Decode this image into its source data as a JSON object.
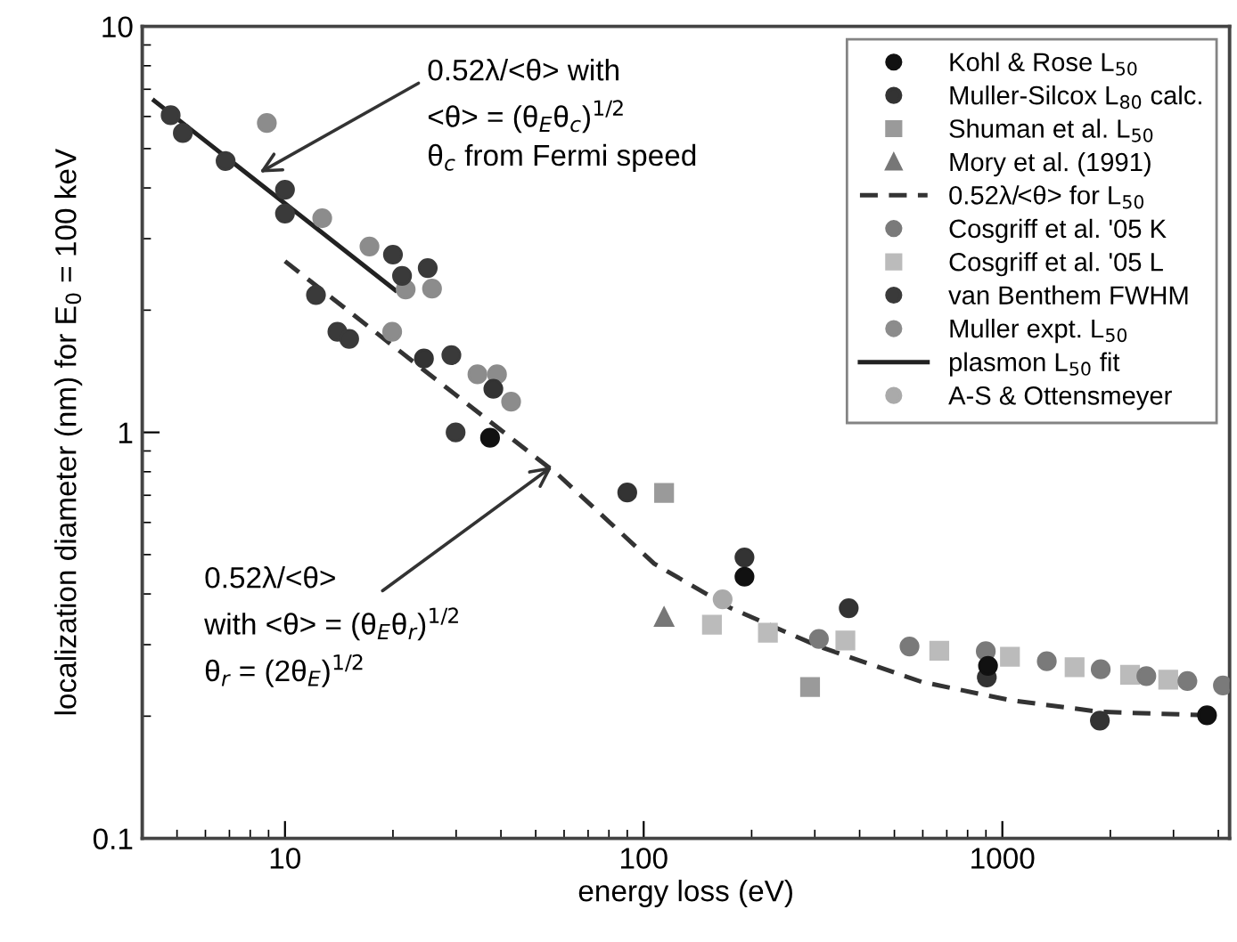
{
  "chart_data": {
    "type": "scatter",
    "xlabel": "energy loss (eV)",
    "ylabel": "localization diameter (nm) for E$_{0}$ = 100 keV",
    "log": "xy",
    "xlim": [
      4,
      4300
    ],
    "ylim": [
      0.1,
      10
    ],
    "xticks": [
      10,
      100,
      1000
    ],
    "yticks": [
      0.1,
      1,
      10
    ],
    "grid": false,
    "legend": "top right",
    "series": [
      {
        "name": "Kohl & Rose L$_{50}$",
        "marker": "circle",
        "color": "#111111",
        "x": [
          37.3,
          191,
          912,
          3720
        ],
        "values": [
          0.97,
          0.441,
          0.266,
          0.201
        ]
      },
      {
        "name": "Muller-Silcox L$_{80}$ calc.",
        "marker": "circle",
        "color": "#333333",
        "x": [
          24.4,
          38.1,
          90,
          191,
          373,
          905,
          1870
        ],
        "values": [
          1.52,
          1.28,
          0.711,
          0.492,
          0.369,
          0.249,
          0.195
        ]
      },
      {
        "name": "Shuman et al. L$_{50}$",
        "marker": "square",
        "color": "#9a9a9a",
        "x": [
          114,
          291
        ],
        "values": [
          0.709,
          0.236
        ]
      },
      {
        "name": "Mory et al. (1991)",
        "marker": "triangle",
        "color": "#777777",
        "x": [
          114
        ],
        "values": [
          0.351
        ]
      },
      {
        "name": "0.52λ/<θ> for L$_{50}$",
        "type": "line",
        "line_style": "dashed",
        "color": "#333333",
        "x": [
          10,
          25,
          57.7,
          107,
          175,
          311,
          595,
          1050,
          1870,
          3720
        ],
        "values": [
          2.64,
          1.4,
          0.787,
          0.475,
          0.369,
          0.296,
          0.243,
          0.219,
          0.205,
          0.201
        ]
      },
      {
        "name": "Cosgriff et al. '05 K",
        "marker": "circle",
        "color": "#7a7a7a",
        "x": [
          308,
          551,
          899,
          1330,
          1880,
          2520,
          3280,
          4120
        ],
        "values": [
          0.31,
          0.297,
          0.289,
          0.273,
          0.261,
          0.251,
          0.244,
          0.238
        ]
      },
      {
        "name": "Cosgriff et al. '05 L",
        "marker": "square",
        "color": "#bbbbbb",
        "x": [
          155,
          222,
          365,
          667,
          1050,
          1590,
          2270,
          2900
        ],
        "values": [
          0.336,
          0.321,
          0.307,
          0.29,
          0.28,
          0.264,
          0.253,
          0.246
        ]
      },
      {
        "name": "van Benthem FWHM",
        "marker": "circle",
        "color": "#3a3a3a",
        "x": [
          4.8,
          5.19,
          6.83,
          10,
          10,
          12.2,
          14.0,
          15.1,
          20.0,
          21.2,
          25.0,
          29.1,
          29.9
        ],
        "values": [
          6.04,
          5.46,
          4.66,
          3.96,
          3.46,
          2.18,
          1.77,
          1.7,
          2.74,
          2.43,
          2.54,
          1.55,
          1.0
        ]
      },
      {
        "name": "Muller expt. L$_{50}$",
        "marker": "circle",
        "color": "#8c8c8c",
        "x": [
          8.9,
          12.7,
          17.2,
          21.7,
          25.7,
          19.9,
          34.4,
          39.0,
          42.7
        ],
        "values": [
          5.78,
          3.37,
          2.87,
          2.25,
          2.26,
          1.77,
          1.39,
          1.39,
          1.19
        ]
      },
      {
        "name": "plasmon L$_{50}$ fit",
        "type": "line",
        "line_style": "solid",
        "color": "#222222",
        "x": [
          4.32,
          20.3
        ],
        "values": [
          6.56,
          2.24
        ]
      },
      {
        "name": "A-S & Ottensmeyer",
        "marker": "circle",
        "color": "#aaaaaa",
        "x": [
          166
        ],
        "values": [
          0.388
        ]
      }
    ],
    "annotations": [
      "0.52λ/<θ> with\n<θ> = (θ$_{E}$θ$_{c}$)$^{1/2}$\nθ$_{c}$ from Fermi speed",
      "0.52λ/<θ>\nwith <θ> = (θ$_{E}$θ$_{r}$)$^{1/2}$\nθ$_{r}$ = (2θ$_{E}$)$^{1/2}$"
    ]
  }
}
